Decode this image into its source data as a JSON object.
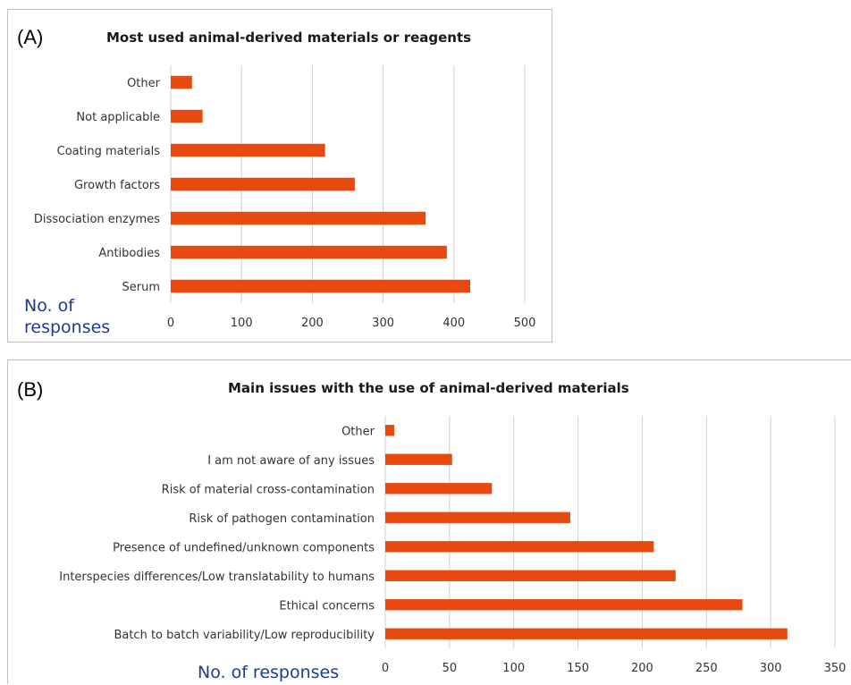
{
  "colors": {
    "bar": "#e8490f",
    "grid": "#d0d0d0",
    "caption": "#1f3a93"
  },
  "chart_data": [
    {
      "type": "bar",
      "orientation": "horizontal",
      "panel_label": "(A)",
      "title": "Most used animal-derived materials or reagents",
      "xlabel_lines": [
        "No. of",
        "responses"
      ],
      "categories": [
        "Other",
        "Not applicable",
        "Coating materials",
        "Growth factors",
        "Dissociation enzymes",
        "Antibodies",
        "Serum"
      ],
      "values": [
        30,
        45,
        218,
        260,
        360,
        390,
        423
      ],
      "xticks": [
        "0",
        "100",
        "200",
        "300",
        "400",
        "500"
      ],
      "xlim": [
        0,
        500
      ],
      "grid": true
    },
    {
      "type": "bar",
      "orientation": "horizontal",
      "panel_label": "(B)",
      "title": "Main issues with the use of animal-derived materials",
      "xlabel_lines": [
        "No. of responses"
      ],
      "categories": [
        "Other",
        "I am not aware of any issues",
        "Risk of material cross-contamination",
        "Risk of pathogen contamination",
        "Presence of undefined/unknown components",
        "Interspecies differences/Low translatability to humans",
        "Ethical concerns",
        "Batch to batch variability/Low reproducibility"
      ],
      "values": [
        7,
        52,
        83,
        144,
        209,
        226,
        278,
        313
      ],
      "xticks": [
        "0",
        "50",
        "100",
        "150",
        "200",
        "250",
        "300",
        "350"
      ],
      "xlim": [
        0,
        350
      ],
      "grid": true
    }
  ]
}
